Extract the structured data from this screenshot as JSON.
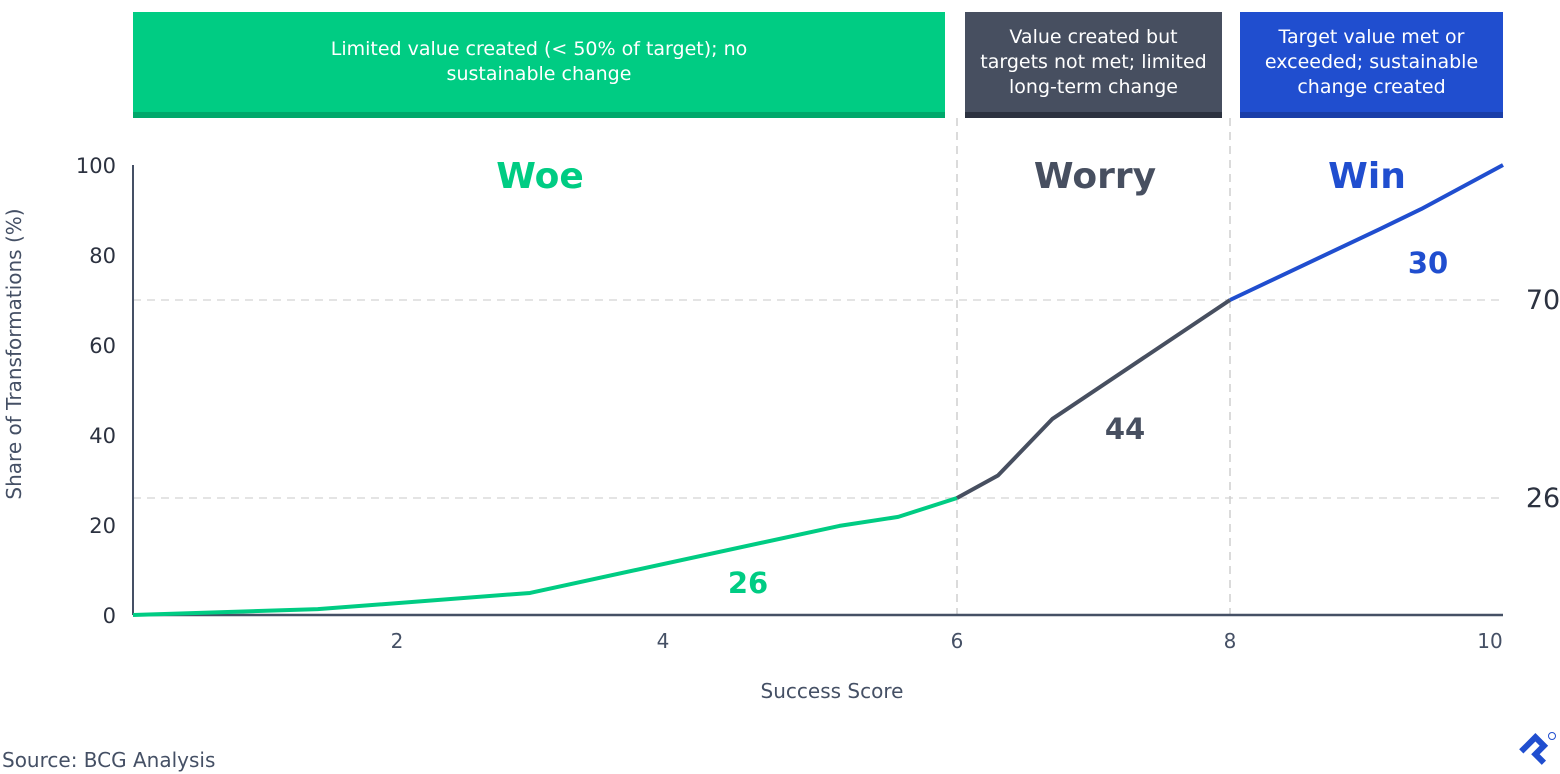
{
  "bands": [
    {
      "text": "Limited value created (< 50% of target); no sustainable change",
      "color": "#00cc83",
      "strip": "#00a86b"
    },
    {
      "text": "Value created but targets not met; limited long-term change",
      "color": "#474f60",
      "strip": "#2c3240"
    },
    {
      "text": "Target value met or exceeded; sustainable change created",
      "color": "#204ecf",
      "strip": "#1a3ea8"
    }
  ],
  "source": "Source: BCG Analysis",
  "chart_data": {
    "type": "line",
    "xlabel": "Success Score",
    "ylabel": "Share of Transformations (%)",
    "xlim": [
      0,
      10
    ],
    "ylim": [
      0,
      100
    ],
    "xticks": [
      2,
      4,
      6,
      8,
      10
    ],
    "yticks": [
      0,
      20,
      40,
      60,
      80,
      100
    ],
    "x": [
      0,
      1.4,
      3.0,
      5.2,
      5.6,
      6.0,
      6.3,
      6.7,
      8.0,
      9.1,
      9.4,
      10
    ],
    "y": [
      0,
      1.3,
      4.9,
      19.8,
      21.8,
      26,
      31,
      43.6,
      70,
      85.8,
      90.2,
      100
    ],
    "zones": [
      {
        "name": "Woe",
        "from": 0,
        "to": 6,
        "share": "26",
        "color": "#00cc83"
      },
      {
        "name": "Worry",
        "from": 6,
        "to": 8,
        "share": "44",
        "color": "#474f60"
      },
      {
        "name": "Win",
        "from": 8,
        "to": 10,
        "share": "30",
        "color": "#204ecf"
      }
    ],
    "reference_lines": [
      {
        "y": 70,
        "label": "70"
      },
      {
        "y": 26,
        "label": "26"
      }
    ],
    "vertical_lines": [
      6,
      8
    ],
    "grid": false
  }
}
